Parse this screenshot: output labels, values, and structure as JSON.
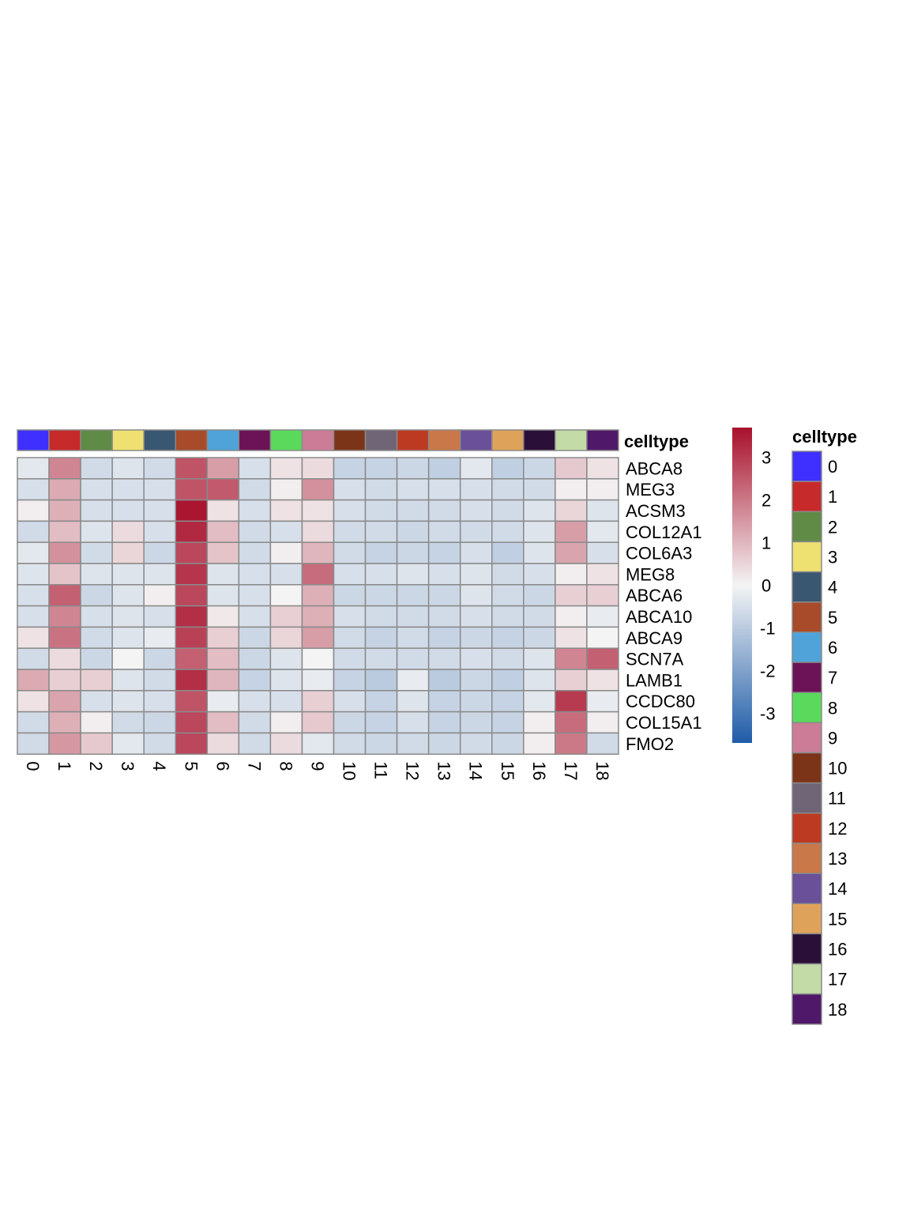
{
  "chart_data": {
    "type": "heatmap",
    "annotation_label": "celltype",
    "legend_title": "celltype",
    "columns": [
      "0",
      "1",
      "2",
      "3",
      "4",
      "5",
      "6",
      "7",
      "8",
      "9",
      "10",
      "11",
      "12",
      "13",
      "14",
      "15",
      "16",
      "17",
      "18"
    ],
    "rows": [
      "ABCA8",
      "MEG3",
      "ACSM3",
      "COL12A1",
      "COL6A3",
      "MEG8",
      "ABCA6",
      "ABCA10",
      "ABCA9",
      "SCN7A",
      "LAMB1",
      "CCDC80",
      "COL15A1",
      "FMO2"
    ],
    "values": [
      [
        -0.3,
        1.8,
        -0.6,
        -0.4,
        -0.6,
        2.6,
        1.4,
        -0.5,
        0.3,
        0.4,
        -0.8,
        -0.8,
        -0.7,
        -0.9,
        -0.3,
        -0.9,
        -0.7,
        0.7,
        0.3
      ],
      [
        -0.5,
        1.2,
        -0.5,
        -0.5,
        -0.5,
        2.6,
        2.5,
        -0.6,
        0.1,
        1.6,
        -0.5,
        -0.6,
        -0.5,
        -0.5,
        -0.5,
        -0.6,
        -0.6,
        0.1,
        0.1
      ],
      [
        0.1,
        1.1,
        -0.5,
        -0.5,
        -0.5,
        3.6,
        0.3,
        -0.5,
        0.3,
        0.3,
        -0.5,
        -0.6,
        -0.6,
        -0.6,
        -0.5,
        -0.6,
        -0.4,
        0.5,
        -0.4
      ],
      [
        -0.6,
        0.9,
        -0.4,
        0.4,
        -0.5,
        3.3,
        0.9,
        -0.6,
        -0.5,
        0.4,
        -0.6,
        -0.6,
        -0.7,
        -0.6,
        -0.6,
        -0.6,
        -0.4,
        1.4,
        -0.3
      ],
      [
        -0.3,
        1.6,
        -0.6,
        0.5,
        -0.7,
        2.8,
        0.8,
        -0.6,
        0.1,
        1.0,
        -0.6,
        -0.8,
        -0.7,
        -0.8,
        -0.5,
        -0.9,
        -0.4,
        1.3,
        -0.5
      ],
      [
        -0.4,
        0.8,
        -0.4,
        -0.4,
        -0.4,
        3.1,
        -0.4,
        -0.5,
        -0.5,
        2.2,
        -0.5,
        -0.5,
        -0.4,
        -0.5,
        -0.4,
        -0.6,
        -0.5,
        0.1,
        0.3
      ],
      [
        -0.5,
        2.4,
        -0.7,
        -0.4,
        0.1,
        2.8,
        -0.4,
        -0.5,
        0.0,
        1.1,
        -0.7,
        -0.7,
        -0.7,
        -0.7,
        -0.4,
        -0.6,
        -0.7,
        0.6,
        0.6
      ],
      [
        -0.5,
        1.8,
        -0.5,
        -0.4,
        -0.5,
        3.2,
        0.2,
        -0.5,
        0.6,
        1.1,
        -0.5,
        -0.6,
        -0.6,
        -0.6,
        -0.5,
        -0.6,
        -0.6,
        0.1,
        -0.2
      ],
      [
        0.3,
        2.1,
        -0.6,
        -0.4,
        -0.2,
        2.9,
        0.6,
        -0.7,
        0.5,
        1.4,
        -0.6,
        -0.8,
        -0.6,
        -0.8,
        -0.7,
        -0.8,
        -0.7,
        0.3,
        0.0
      ],
      [
        -0.6,
        0.4,
        -0.7,
        0.0,
        -0.7,
        2.4,
        0.9,
        -0.7,
        -0.4,
        0.0,
        -0.6,
        -0.6,
        -0.6,
        -0.6,
        -0.5,
        -0.6,
        -0.4,
        1.8,
        2.4
      ],
      [
        1.2,
        0.6,
        0.6,
        -0.4,
        -0.6,
        3.2,
        1.0,
        -0.8,
        -0.4,
        -0.2,
        -0.8,
        -1.0,
        -0.2,
        -1.0,
        -0.7,
        -0.9,
        -0.4,
        0.6,
        0.3
      ],
      [
        0.3,
        1.3,
        -0.5,
        -0.4,
        -0.5,
        2.6,
        -0.2,
        -0.5,
        -0.5,
        0.6,
        -0.5,
        -0.8,
        -0.4,
        -0.8,
        -0.7,
        -0.8,
        -0.3,
        3.0,
        -0.2
      ],
      [
        -0.6,
        1.1,
        0.1,
        -0.6,
        -0.7,
        2.8,
        0.9,
        -0.6,
        0.1,
        0.7,
        -0.7,
        -0.8,
        -0.5,
        -0.8,
        -0.7,
        -0.8,
        0.1,
        2.2,
        0.1
      ],
      [
        -0.6,
        1.5,
        0.7,
        -0.3,
        -0.6,
        2.8,
        0.4,
        -0.6,
        0.4,
        -0.3,
        -0.6,
        -0.7,
        -0.6,
        -0.7,
        -0.6,
        -0.7,
        0.1,
        2.0,
        -0.6
      ]
    ],
    "column_colors": [
      "#3f30ff",
      "#c72a2a",
      "#5f8b46",
      "#efe171",
      "#3a5771",
      "#a84b2b",
      "#4fa3d9",
      "#6b1356",
      "#5ad95c",
      "#cc7c96",
      "#7c3418",
      "#706577",
      "#bc3a22",
      "#c97849",
      "#6a5099",
      "#dfa25a",
      "#2a1038",
      "#c3dba6",
      "#4f1868"
    ],
    "scale_ticks": [
      3,
      2,
      1,
      0,
      -1,
      -2,
      -3
    ],
    "scale_range": [
      -3.7,
      3.7
    ],
    "scale_colors": [
      "#1f5ca8",
      "#f4f4f4",
      "#a8102b"
    ]
  }
}
